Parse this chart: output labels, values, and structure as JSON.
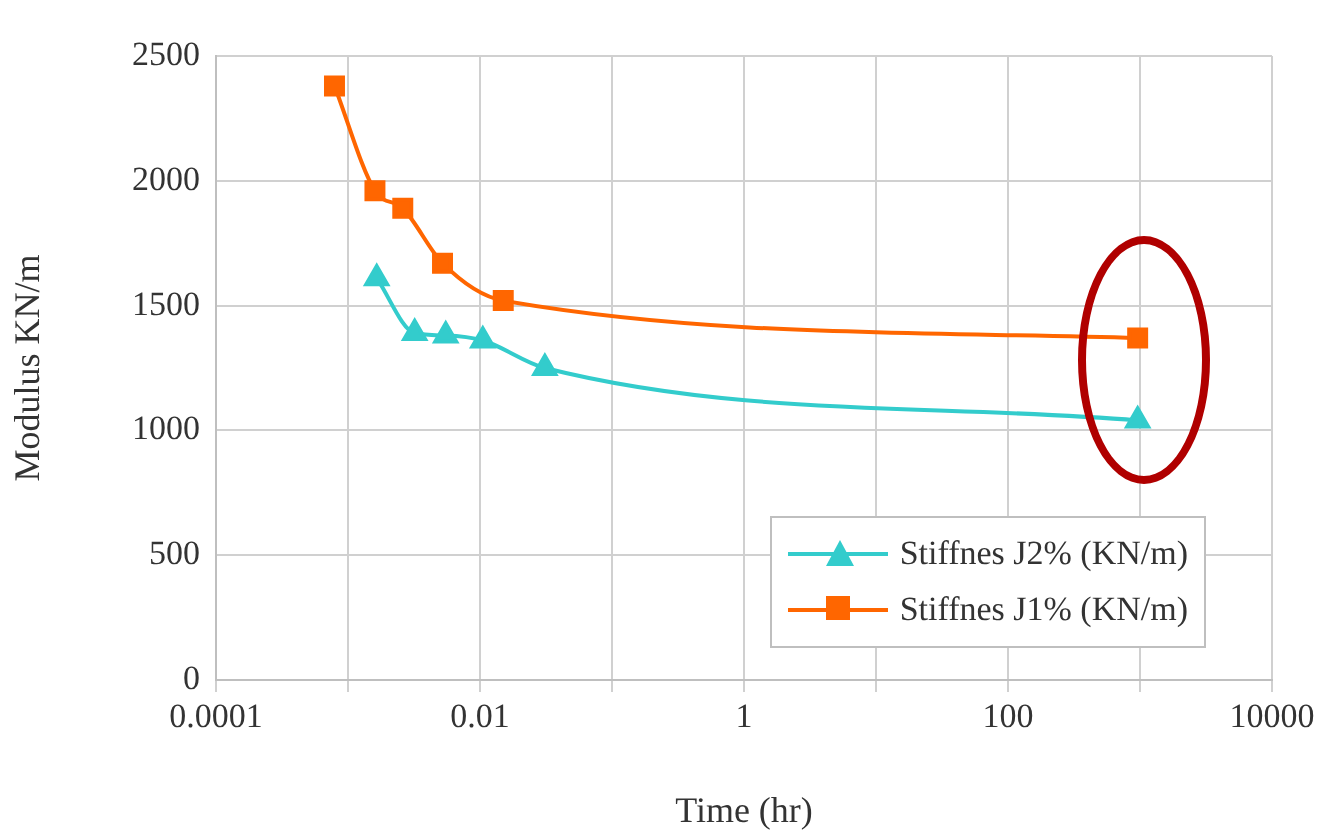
{
  "chart_data": {
    "type": "line",
    "xlabel": "Time (hr)",
    "ylabel": "Modulus KN/m",
    "log": "x",
    "xlim": [
      0.0001,
      10000
    ],
    "xticks": [
      0.0001,
      {
        "value": 0.001,
        "label": null
      },
      0.01,
      {
        "value": 0.1,
        "label": null
      },
      1,
      {
        "value": 10,
        "label": null
      },
      100,
      {
        "value": 1000,
        "label": null
      },
      10000
    ],
    "ylim": [
      0,
      2500
    ],
    "yticks": [
      0,
      500,
      1000,
      1500,
      2000,
      2500
    ],
    "grid": true,
    "legend": "bottom right",
    "series": [
      {
        "name": "Stiffnes J2% (KN/m)",
        "color": "#33cccc",
        "marker": "triangle",
        "x": [
          0.00165,
          0.0032,
          0.0055,
          0.0105,
          0.031,
          960
        ],
        "values": [
          1610,
          1390,
          1380,
          1360,
          1250,
          1040
        ]
      },
      {
        "name": "Stiffnes J1% (KN/m)",
        "color": "#ff6600",
        "marker": "square",
        "x": [
          0.00079,
          0.0016,
          0.0026,
          0.0052,
          0.015,
          960
        ],
        "values": [
          2380,
          1960,
          1890,
          1670,
          1520,
          1370
        ]
      }
    ]
  }
}
